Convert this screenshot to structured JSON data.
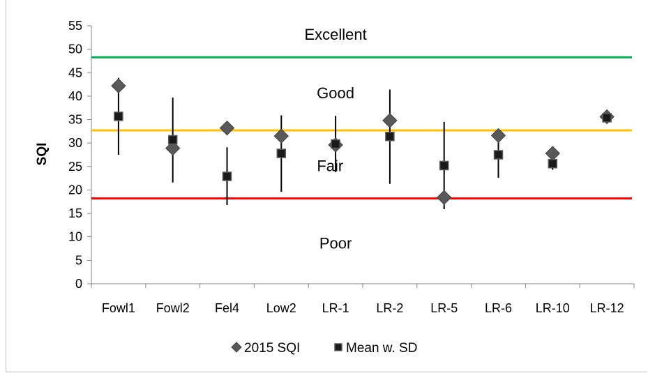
{
  "chart_data": {
    "type": "scatter",
    "ylabel": "SQI",
    "ylim": [
      0,
      55
    ],
    "ytick_step": 5,
    "categories": [
      "Fowl1",
      "Fowl2",
      "Fel4",
      "Low2",
      "LR-1",
      "LR-2",
      "LR-5",
      "LR-6",
      "LR-10",
      "LR-12"
    ],
    "series": [
      {
        "name": "2015 SQI",
        "marker": "diamond",
        "color": "#595959",
        "values": [
          42.2,
          28.9,
          33.2,
          31.5,
          29.6,
          34.8,
          18.4,
          31.6,
          27.8,
          35.6
        ]
      },
      {
        "name": "Mean w. SD",
        "marker": "square",
        "color": "#1a1a1a",
        "values": [
          35.7,
          30.7,
          22.9,
          27.8,
          29.8,
          31.4,
          25.2,
          27.5,
          25.6,
          35.4
        ],
        "error": [
          [
            27.5,
            43.9
          ],
          [
            21.6,
            39.7
          ],
          [
            16.8,
            29.1
          ],
          [
            19.6,
            35.9
          ],
          [
            23.8,
            35.8
          ],
          [
            21.3,
            41.4
          ],
          [
            15.9,
            34.5
          ],
          [
            22.6,
            32.7
          ],
          [
            24.3,
            27.0
          ],
          [
            34.3,
            36.3
          ]
        ]
      }
    ],
    "reference_lines": [
      {
        "value": 48.3,
        "color": "#00b050"
      },
      {
        "value": 32.7,
        "color": "#ffc000"
      },
      {
        "value": 18.2,
        "color": "#ff0000"
      }
    ],
    "zone_labels": [
      {
        "text": "Excellent",
        "y": 53.2,
        "category_pos": 4.5
      },
      {
        "text": "Good",
        "y": 40.7,
        "category_pos": 4.5
      },
      {
        "text": "Fair",
        "y": 25.2,
        "category_pos": 4.4
      },
      {
        "text": "Poor",
        "y": 8.7,
        "category_pos": 4.5
      }
    ],
    "legend_position": "bottom"
  }
}
